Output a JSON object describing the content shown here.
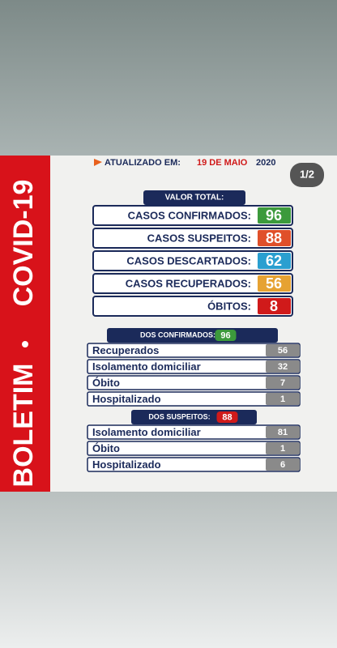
{
  "header": {
    "updated_label": "ATUALIZADO EM:",
    "date": "19 DE MAIO",
    "year": "2020",
    "page_indicator": "1/2"
  },
  "side_title": {
    "left": "BOLETIM",
    "right": "COVID-19"
  },
  "totals": {
    "title": "VALOR TOTAL:",
    "rows": [
      {
        "label": "CASOS CONFIRMADOS:",
        "value": 96,
        "color": "#3c9a3c"
      },
      {
        "label": "CASOS SUSPEITOS:",
        "value": 88,
        "color": "#e0502a"
      },
      {
        "label": "CASOS DESCARTADOS:",
        "value": 62,
        "color": "#2a9fd0"
      },
      {
        "label": "CASOS RECUPERADOS:",
        "value": 56,
        "color": "#e6a232"
      },
      {
        "label": "ÓBITOS:",
        "value": 8,
        "color": "#d01a1a"
      }
    ]
  },
  "confirmed": {
    "title": "DOS CONFIRMADOS:",
    "total": 96,
    "color": "#3c9a3c",
    "rows": [
      {
        "label": "Recuperados",
        "value": 56
      },
      {
        "label": "Isolamento domiciliar",
        "value": 32
      },
      {
        "label": "Óbito",
        "value": 7
      },
      {
        "label": "Hospitalizado",
        "value": 1
      }
    ]
  },
  "suspected": {
    "title": "DOS SUSPEITOS:",
    "total": 88,
    "color": "#d01a1a",
    "rows": [
      {
        "label": "Isolamento domiciliar",
        "value": 81
      },
      {
        "label": "Óbito",
        "value": 1
      },
      {
        "label": "Hospitalizado",
        "value": 6
      }
    ]
  }
}
